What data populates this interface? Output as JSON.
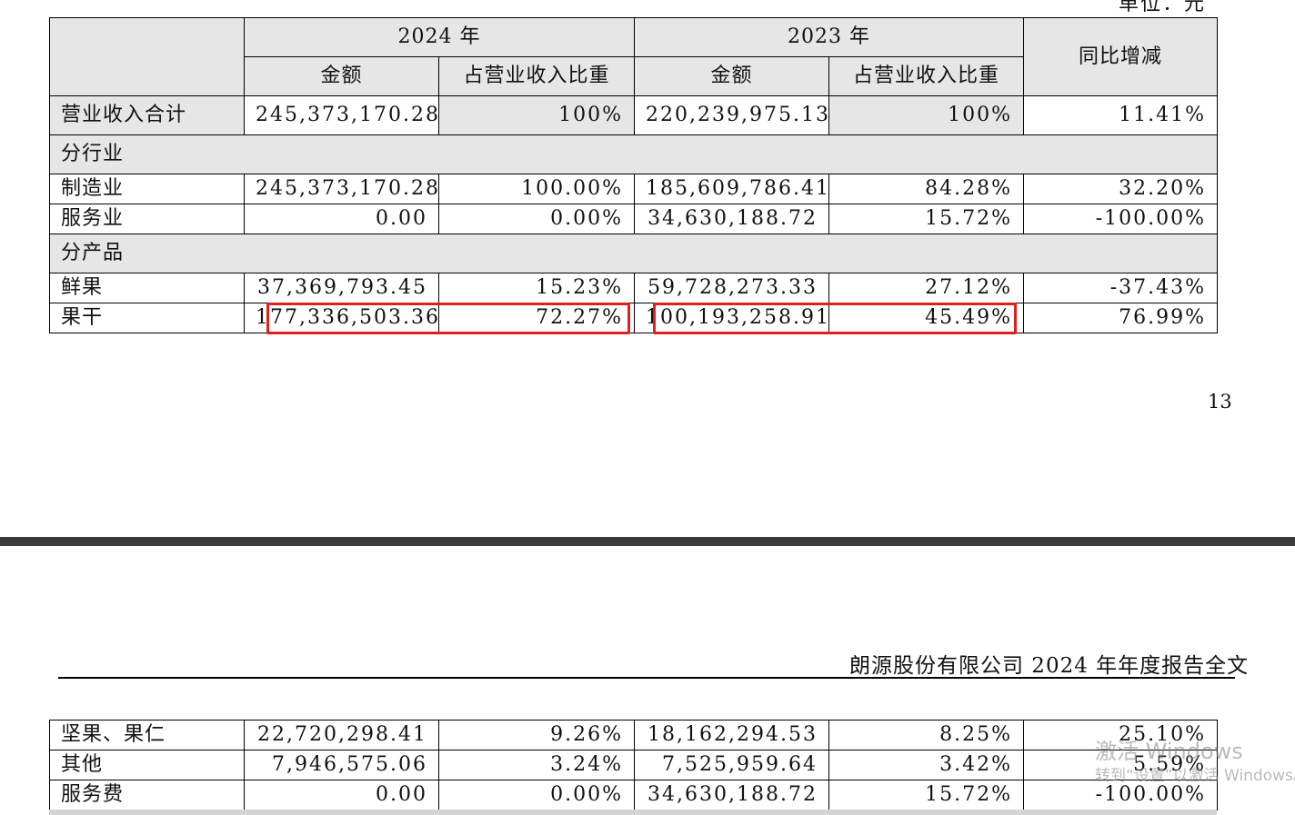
{
  "unit_label": "单位：元",
  "page_number": "13",
  "running_header": "朗源股份有限公司 2024 年年度报告全文",
  "table_top": {
    "header": {
      "year_2024": "2024 年",
      "year_2023": "2023 年",
      "yoy_change": "同比增减",
      "amount": "金额",
      "share_of_revenue": "占营业收入比重"
    },
    "total_row": {
      "label": "营业收入合计",
      "amount_2024": "245,373,170.28",
      "share_2024": "100%",
      "amount_2023": "220,239,975.13",
      "share_2023": "100%",
      "yoy": "11.41%"
    },
    "section_industry": "分行业",
    "industry_rows": [
      {
        "label": "制造业",
        "amount_2024": "245,373,170.28",
        "share_2024": "100.00%",
        "amount_2023": "185,609,786.41",
        "share_2023": "84.28%",
        "yoy": "32.20%"
      },
      {
        "label": "服务业",
        "amount_2024": "0.00",
        "share_2024": "0.00%",
        "amount_2023": "34,630,188.72",
        "share_2023": "15.72%",
        "yoy": "-100.00%"
      }
    ],
    "section_product": "分产品",
    "product_rows": [
      {
        "label": "鲜果",
        "amount_2024": "37,369,793.45",
        "share_2024": "15.23%",
        "amount_2023": "59,728,273.33",
        "share_2023": "27.12%",
        "yoy": "-37.43%"
      },
      {
        "label": "果干",
        "amount_2024": "177,336,503.36",
        "share_2024": "72.27%",
        "amount_2023": "100,193,258.91",
        "share_2023": "45.49%",
        "yoy": "76.99%"
      }
    ]
  },
  "table_bottom": {
    "rows": [
      {
        "label": "坚果、果仁",
        "amount_2024": "22,720,298.41",
        "share_2024": "9.26%",
        "amount_2023": "18,162,294.53",
        "share_2023": "8.25%",
        "yoy": "25.10%"
      },
      {
        "label": "其他",
        "amount_2024": "7,946,575.06",
        "share_2024": "3.24%",
        "amount_2023": "7,525,959.64",
        "share_2023": "3.42%",
        "yoy": "5.59%"
      },
      {
        "label": "服务费",
        "amount_2024": "0.00",
        "share_2024": "0.00%",
        "amount_2023": "34,630,188.72",
        "share_2023": "15.72%",
        "yoy": "-100.00%"
      }
    ]
  },
  "highlight_color": "#e02020",
  "watermark": {
    "line1": "激活 Windows",
    "line2": "转到“设置”以激活 Windows。"
  }
}
